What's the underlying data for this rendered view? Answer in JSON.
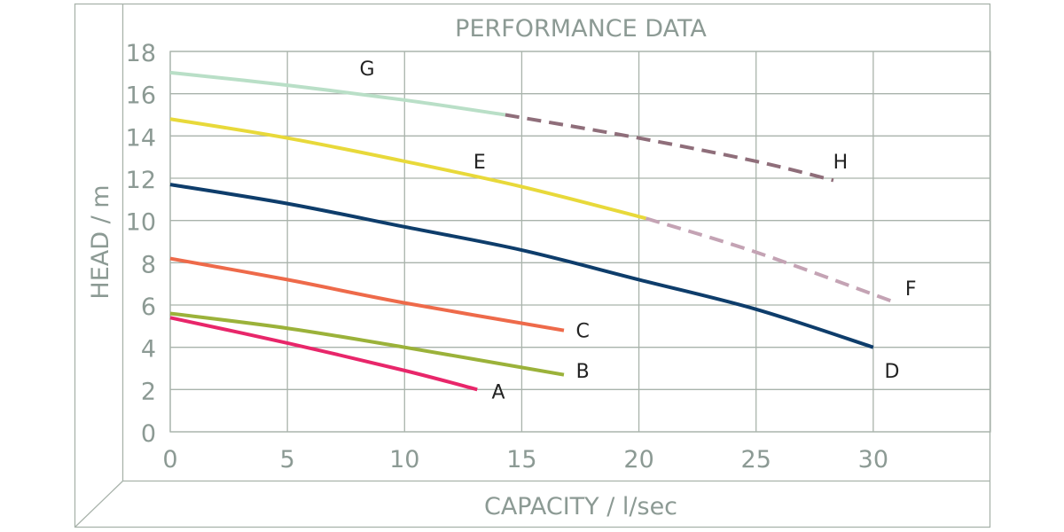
{
  "chart_data": {
    "type": "line",
    "title": "PERFORMANCE DATA",
    "xlabel": "CAPACITY / l/sec",
    "ylabel": "HEAD / m",
    "xlim": [
      0,
      35
    ],
    "ylim": [
      0,
      18
    ],
    "xticks": [
      0,
      5,
      10,
      15,
      20,
      25,
      30
    ],
    "yticks": [
      0,
      2,
      4,
      6,
      8,
      10,
      12,
      14,
      16,
      18
    ],
    "grid": true,
    "series": [
      {
        "name": "A",
        "color": "#e8266a",
        "dashed": false,
        "points": [
          [
            0,
            5.4
          ],
          [
            5,
            4.2
          ],
          [
            10,
            2.9
          ],
          [
            13.1,
            2.0
          ]
        ]
      },
      {
        "name": "B",
        "color": "#9bb23a",
        "dashed": false,
        "points": [
          [
            0,
            5.6
          ],
          [
            5,
            4.9
          ],
          [
            10,
            4.0
          ],
          [
            16.8,
            2.7
          ]
        ]
      },
      {
        "name": "C",
        "color": "#ee6a4a",
        "dashed": false,
        "points": [
          [
            0,
            8.2
          ],
          [
            5,
            7.2
          ],
          [
            10,
            6.1
          ],
          [
            16.8,
            4.8
          ]
        ]
      },
      {
        "name": "D",
        "color": "#0e3d6b",
        "dashed": false,
        "points": [
          [
            0,
            11.7
          ],
          [
            5,
            10.8
          ],
          [
            10,
            9.7
          ],
          [
            15,
            8.6
          ],
          [
            20,
            7.2
          ],
          [
            25,
            5.8
          ],
          [
            30,
            4.0
          ]
        ]
      },
      {
        "name": "E",
        "color": "#e8d93a",
        "dashed": false,
        "points": [
          [
            0,
            14.8
          ],
          [
            5,
            13.9
          ],
          [
            10,
            12.8
          ],
          [
            15,
            11.6
          ],
          [
            20.3,
            10.1
          ]
        ]
      },
      {
        "name": "F",
        "color": "#c4a3b4",
        "dashed": true,
        "points": [
          [
            20.3,
            10.1
          ],
          [
            25,
            8.5
          ],
          [
            31,
            6.1
          ]
        ]
      },
      {
        "name": "G",
        "color": "#b9dfc7",
        "dashed": false,
        "points": [
          [
            0,
            17.0
          ],
          [
            5,
            16.4
          ],
          [
            10,
            15.7
          ],
          [
            14.3,
            15.0
          ]
        ]
      },
      {
        "name": "H",
        "color": "#8f6e7a",
        "dashed": true,
        "points": [
          [
            14.3,
            15.0
          ],
          [
            20,
            13.9
          ],
          [
            25,
            12.8
          ],
          [
            28.3,
            11.9
          ]
        ]
      }
    ],
    "annotations": [
      {
        "text": "A",
        "x": 14.0,
        "y": 1.9
      },
      {
        "text": "B",
        "x": 17.6,
        "y": 2.9
      },
      {
        "text": "C",
        "x": 17.6,
        "y": 4.8
      },
      {
        "text": "D",
        "x": 30.8,
        "y": 2.9
      },
      {
        "text": "E",
        "x": 13.2,
        "y": 12.8
      },
      {
        "text": "F",
        "x": 31.6,
        "y": 6.8
      },
      {
        "text": "G",
        "x": 8.4,
        "y": 17.2
      },
      {
        "text": "H",
        "x": 28.6,
        "y": 12.8
      }
    ]
  }
}
